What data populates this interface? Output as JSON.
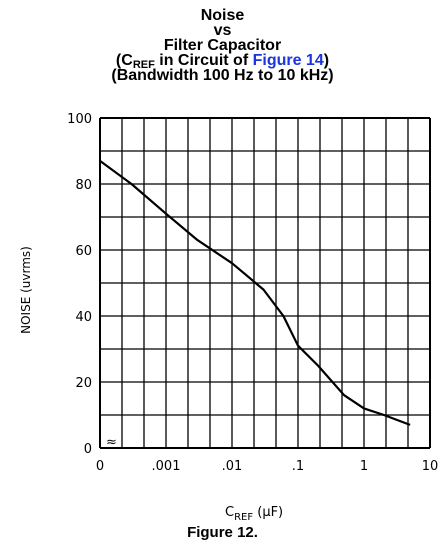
{
  "chart_data": {
    "type": "line",
    "title": {
      "line1": "Noise",
      "line2": "vs",
      "line3": "Filter Capacitor",
      "line4_prefix": "(C",
      "line4_sub": "REF",
      "line4_mid": " in Circuit of ",
      "line4_link": "Figure 14",
      "line4_suffix": ")",
      "line5": "(Bandwidth 100 Hz to 10 kHz)"
    },
    "ylabel": "NOISE (uvrms)",
    "xlabel_main": "C",
    "xlabel_sub": "REF",
    "xlabel_unit": " (μF)",
    "xscale": "log",
    "xlim": [
      0.0001,
      10
    ],
    "ylim": [
      0,
      100
    ],
    "x_ticks": [
      "0",
      ".001",
      ".01",
      ".1",
      "1",
      "10"
    ],
    "y_ticks": [
      "0",
      "20",
      "40",
      "60",
      "80",
      "100"
    ],
    "axis_break": "≈",
    "grid": true,
    "series": [
      {
        "x": [
          0.0001,
          0.0003,
          0.001,
          0.003,
          0.01,
          0.03,
          0.06,
          0.1,
          0.2,
          0.5,
          1,
          2,
          5
        ],
        "y": [
          87,
          80,
          71,
          63,
          56,
          48,
          40,
          31,
          25,
          16,
          12,
          10,
          7
        ]
      }
    ]
  },
  "caption": "Figure 12."
}
